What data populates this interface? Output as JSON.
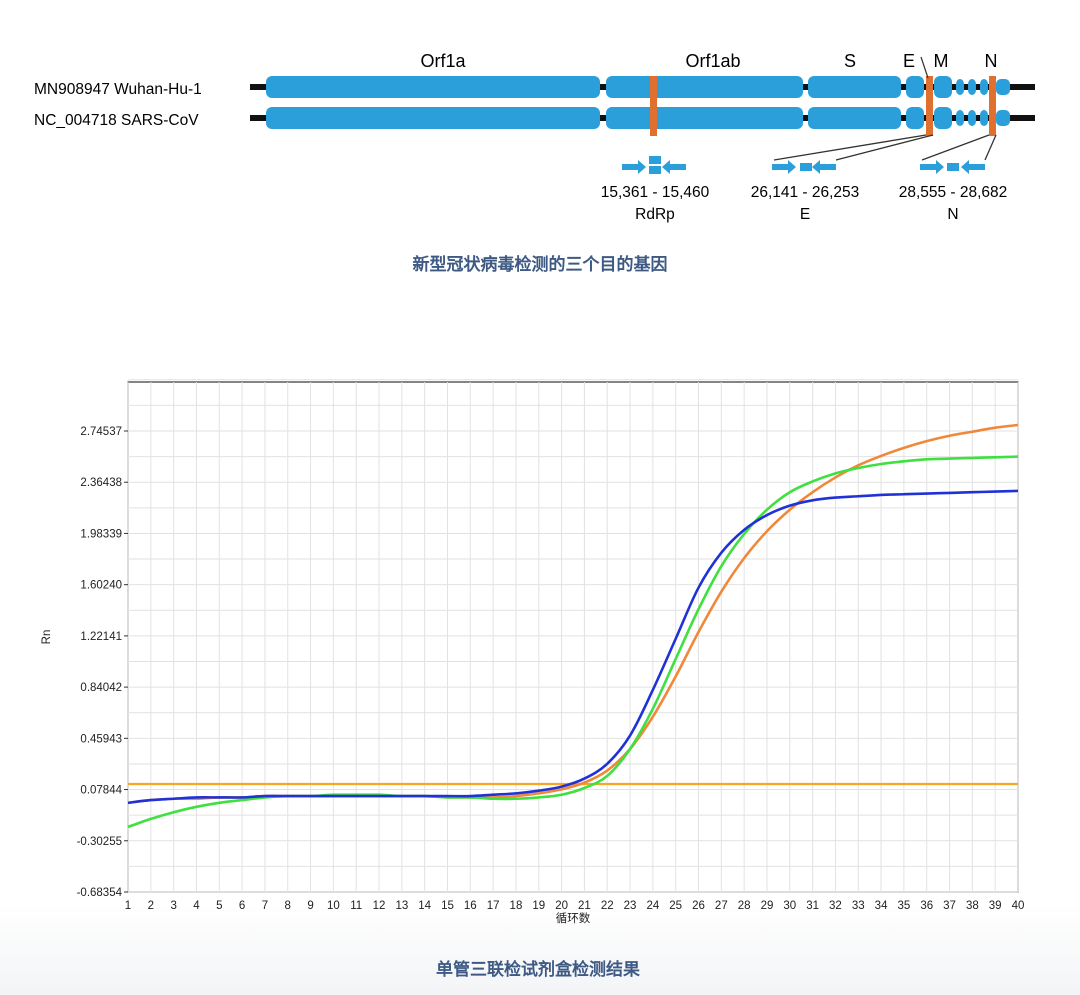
{
  "genome_map": {
    "sequences": [
      {
        "label": "MN908947 Wuhan-Hu-1"
      },
      {
        "label": "NC_004718 SARS-CoV"
      }
    ],
    "genes": [
      "Orf1a",
      "Orf1ab",
      "S",
      "E",
      "M",
      "N"
    ],
    "targets": [
      {
        "range": "15,361 - 15,460",
        "gene": "RdRp"
      },
      {
        "range": "26,141 - 26,253",
        "gene": "E"
      },
      {
        "range": "28,555 - 28,682",
        "gene": "N"
      }
    ],
    "caption": "新型冠状病毒检测的三个目的基因",
    "colors": {
      "gene_bar": "#2b9fd9",
      "target_marker": "#e0702f",
      "genome_line": "#111111"
    }
  },
  "chart_data": {
    "type": "line",
    "ylabel": "Rn",
    "xlabel": "循环数",
    "caption": "单管三联检试剂盒检测结果",
    "x": [
      1,
      2,
      3,
      4,
      5,
      6,
      7,
      8,
      9,
      10,
      11,
      12,
      13,
      14,
      15,
      16,
      17,
      18,
      19,
      20,
      21,
      22,
      23,
      24,
      25,
      26,
      27,
      28,
      29,
      30,
      31,
      32,
      33,
      34,
      35,
      36,
      37,
      38,
      39,
      40
    ],
    "xlim": [
      1,
      40
    ],
    "ylim": [
      -0.68354,
      3.12636
    ],
    "y_ticks": [
      "-0.68354",
      "-0.30255",
      "0.07844",
      "0.45943",
      "0.84042",
      "1.22141",
      "1.60240",
      "1.98339",
      "2.36438",
      "2.74537"
    ],
    "threshold": 0.12,
    "grid": true,
    "series": [
      {
        "color": "#f0883a",
        "values": [
          -0.02,
          0.0,
          0.01,
          0.01,
          0.02,
          0.02,
          0.03,
          0.03,
          0.03,
          0.03,
          0.03,
          0.03,
          0.03,
          0.03,
          0.02,
          0.02,
          0.02,
          0.03,
          0.05,
          0.08,
          0.13,
          0.22,
          0.38,
          0.62,
          0.92,
          1.25,
          1.55,
          1.8,
          2.0,
          2.16,
          2.29,
          2.4,
          2.49,
          2.56,
          2.62,
          2.67,
          2.71,
          2.74,
          2.77,
          2.79
        ]
      },
      {
        "color": "#3fe03f",
        "values": [
          -0.2,
          -0.14,
          -0.09,
          -0.05,
          -0.02,
          0.0,
          0.02,
          0.03,
          0.03,
          0.04,
          0.04,
          0.04,
          0.03,
          0.03,
          0.02,
          0.02,
          0.01,
          0.01,
          0.02,
          0.04,
          0.09,
          0.18,
          0.38,
          0.68,
          1.05,
          1.42,
          1.74,
          1.98,
          2.16,
          2.29,
          2.37,
          2.43,
          2.47,
          2.5,
          2.52,
          2.535,
          2.54,
          2.545,
          2.55,
          2.555
        ]
      },
      {
        "color": "#2032d6",
        "values": [
          -0.02,
          0.0,
          0.01,
          0.02,
          0.02,
          0.02,
          0.03,
          0.03,
          0.03,
          0.03,
          0.03,
          0.03,
          0.03,
          0.03,
          0.03,
          0.03,
          0.04,
          0.05,
          0.07,
          0.1,
          0.16,
          0.27,
          0.48,
          0.82,
          1.2,
          1.58,
          1.84,
          2.01,
          2.12,
          2.19,
          2.23,
          2.25,
          2.26,
          2.27,
          2.275,
          2.28,
          2.285,
          2.29,
          2.295,
          2.3
        ]
      }
    ],
    "threshold_color": "#f5a623"
  }
}
